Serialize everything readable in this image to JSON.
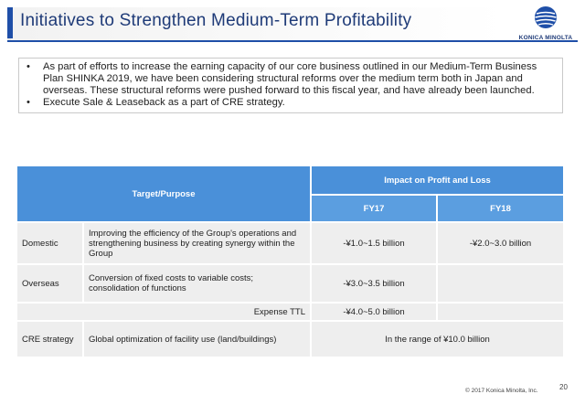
{
  "header": {
    "title": "Initiatives to Strengthen Medium-Term Profitability",
    "logo_text": "KONICA MINOLTA"
  },
  "bullets": [
    {
      "marker": "•",
      "text": "As part of efforts to increase the earning capacity of our core business outlined in our Medium-Term Business Plan SHINKA 2019, we have been considering structural reforms over the medium term both in Japan and overseas. These structural reforms were pushed forward to this fiscal year, and have already been launched."
    },
    {
      "marker": "•",
      "text": "Execute Sale & Leaseback as a part of CRE strategy."
    }
  ],
  "table": {
    "header_target": "Target/Purpose",
    "header_impact": "Impact on Profit and Loss",
    "fy17": "FY17",
    "fy18": "FY18",
    "rows": {
      "domestic": {
        "category": "Domestic",
        "description": "Improving the efficiency of the Group's operations and strengthening business by creating synergy within the Group",
        "fy17": "-¥1.0~1.5 billion",
        "fy18": "-¥2.0~3.0 billion"
      },
      "overseas": {
        "category": "Overseas",
        "description": "Conversion of fixed costs to variable costs; consolidation of functions",
        "fy17": "-¥3.0~3.5 billion",
        "fy18": ""
      },
      "expense": {
        "label": "Expense TTL",
        "fy17": "-¥4.0~5.0 billion",
        "fy18": ""
      },
      "cre": {
        "category": "CRE strategy",
        "description": "Global optimization of facility use (land/buildings)",
        "impact": "In the range of ¥10.0 billion"
      }
    }
  },
  "footer": {
    "copyright": "© 2017 Konica Minolta, Inc.",
    "page": "20"
  },
  "colors": {
    "accent": "#1f4fa8",
    "table_header": "#4a90d9",
    "table_subheader": "#5b9ee0",
    "cell_bg": "#eeeeee"
  }
}
